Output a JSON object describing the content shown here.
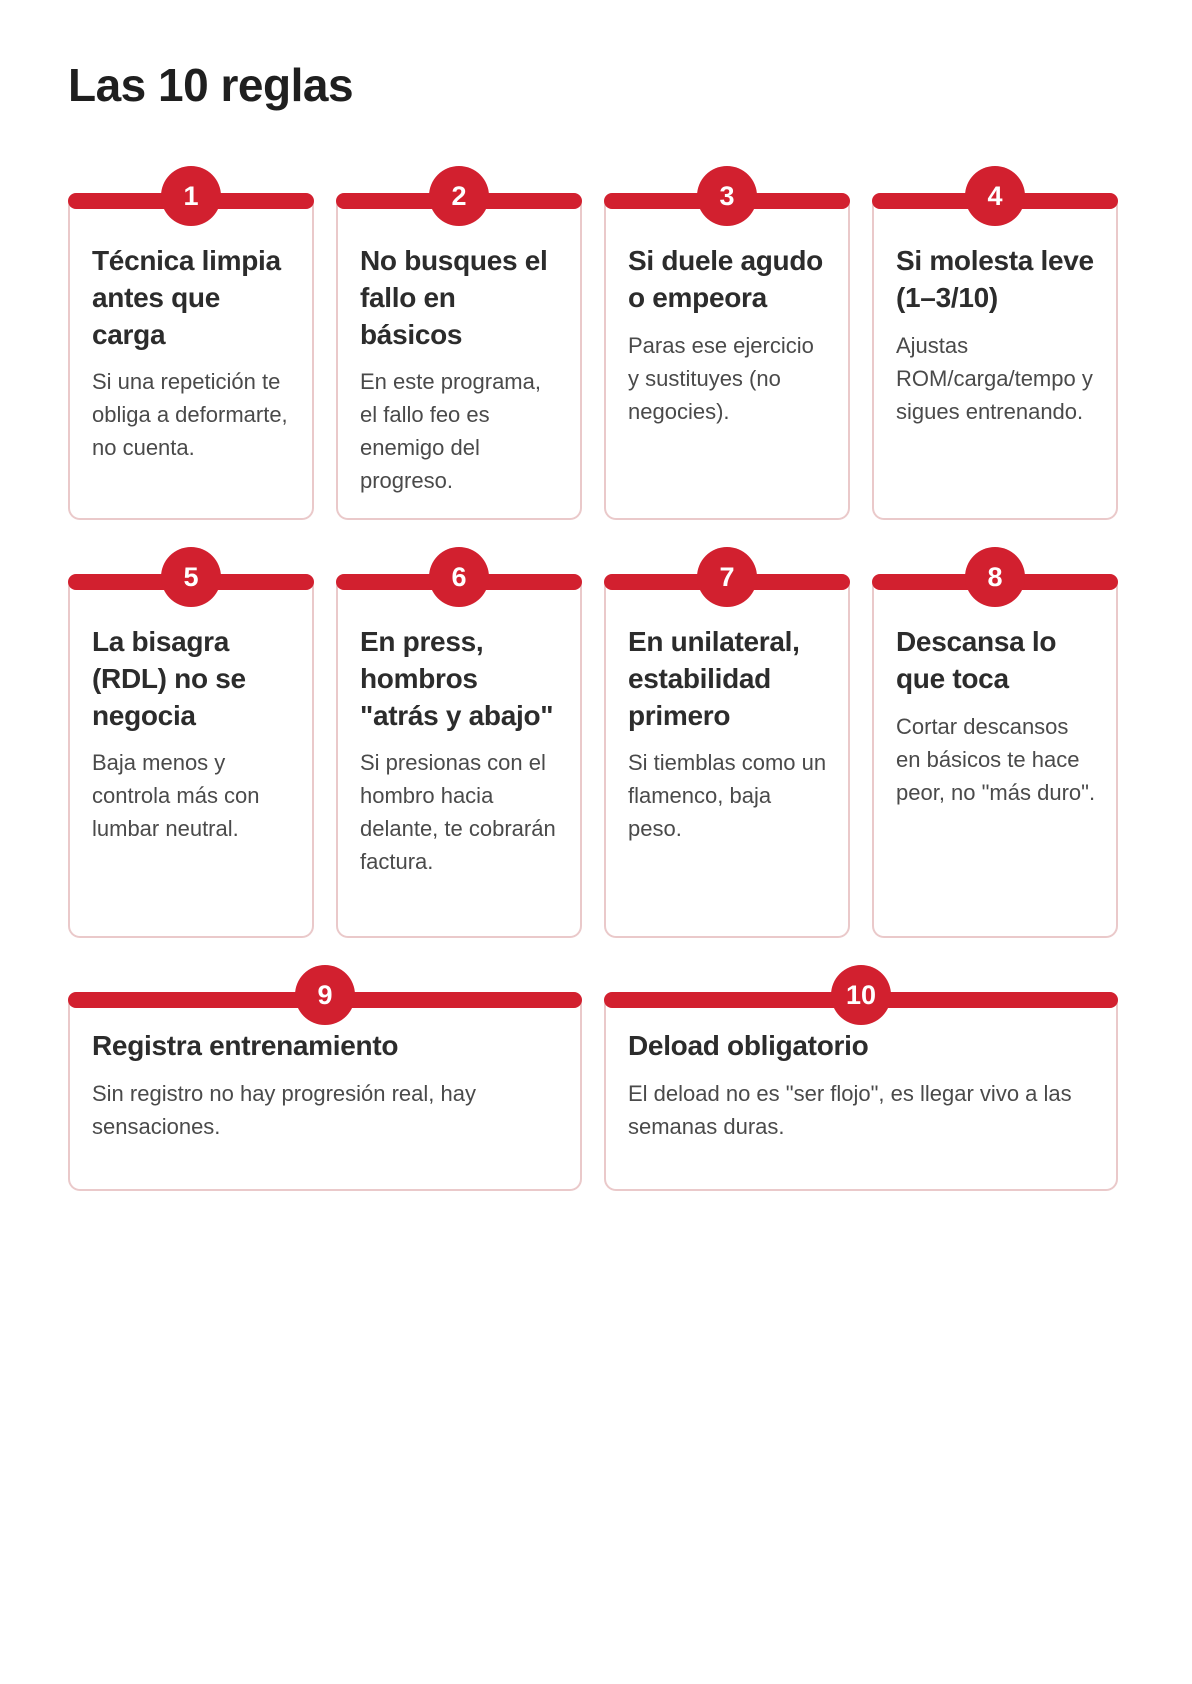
{
  "page": {
    "title": "Las 10 reglas"
  },
  "theme": {
    "accent_red": "#d2202f",
    "card_border_pink": "#eac9ca",
    "title_text_color": "#2c2c2c",
    "body_text_color": "#4a4a4a",
    "heading_color": "#1f1f1f",
    "background": "#ffffff"
  },
  "cards": [
    {
      "number": "1",
      "title": "Técnica limpia antes que carga",
      "body": "Si una repetición te obliga a deformarte, no cuenta."
    },
    {
      "number": "2",
      "title": "No busques el fallo en básicos",
      "body": "En este programa, el fallo feo es enemigo del progreso."
    },
    {
      "number": "3",
      "title": "Si duele agudo o empeora",
      "body": "Paras ese ejercicio y sustituyes (no negocies)."
    },
    {
      "number": "4",
      "title": "Si molesta leve (1–3/10)",
      "body": "Ajustas ROM/carga/tempo y sigues entrenando."
    },
    {
      "number": "5",
      "title": "La bisagra (RDL) no se negocia",
      "body": "Baja menos y controla más con lumbar neutral."
    },
    {
      "number": "6",
      "title": "En press, hombros \"atrás y abajo\"",
      "body": "Si presionas con el hombro hacia delante, te cobrarán factura."
    },
    {
      "number": "7",
      "title": "En unilateral, estabilidad primero",
      "body": "Si tiemblas como un flamenco, baja peso."
    },
    {
      "number": "8",
      "title": "Descansa lo que toca",
      "body": "Cortar descansos en básicos te hace peor, no \"más duro\"."
    },
    {
      "number": "9",
      "title": "Registra entrenamiento",
      "body": "Sin registro no hay progresión real, hay sensaciones."
    },
    {
      "number": "10",
      "title": "Deload obligatorio",
      "body": "El deload no es \"ser flojo\", es llegar vivo a las semanas duras."
    }
  ]
}
